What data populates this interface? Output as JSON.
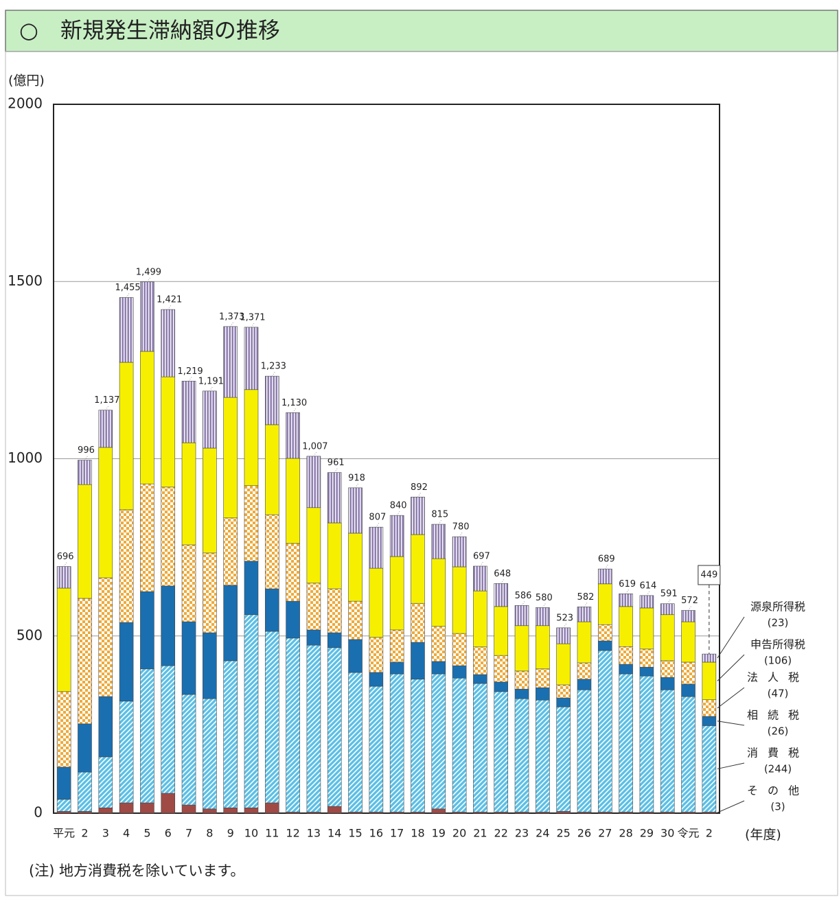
{
  "chart_data": {
    "type": "stacked_bar",
    "title": "○　新規発生滞納額の推移",
    "y_unit": "(億円)",
    "x_unit": "(年度)",
    "note": "(注) 地方消費税を除いています。",
    "categories": [
      "平元",
      "2",
      "3",
      "4",
      "5",
      "6",
      "7",
      "8",
      "9",
      "10",
      "11",
      "12",
      "13",
      "14",
      "15",
      "16",
      "17",
      "18",
      "19",
      "20",
      "21",
      "22",
      "23",
      "24",
      "25",
      "26",
      "27",
      "28",
      "29",
      "30",
      "令元",
      "2"
    ],
    "ylim": [
      0,
      2000
    ],
    "yticks": [
      0,
      500,
      1000,
      1500,
      2000
    ],
    "grid": true,
    "series": [
      {
        "name": "その他",
        "legend_label": "(3)",
        "color": "#a04a46",
        "pattern": "solid",
        "values": [
          5,
          5,
          15,
          29,
          29,
          56,
          23,
          12,
          15,
          15,
          29,
          3,
          3,
          19,
          3,
          3,
          3,
          3,
          12,
          3,
          3,
          3,
          3,
          3,
          5,
          3,
          3,
          3,
          3,
          3,
          3,
          3
        ]
      },
      {
        "name": "消費税",
        "legend_label": "(244)",
        "color": "#5bbfe6",
        "pattern": "diagonal",
        "values": [
          34,
          111,
          144,
          287,
          378,
          360,
          312,
          311,
          415,
          545,
          484,
          491,
          471,
          448,
          394,
          355,
          390,
          375,
          381,
          378,
          363,
          340,
          320,
          316,
          295,
          345,
          456,
          390,
          384,
          345,
          326,
          244
        ]
      },
      {
        "name": "相続税",
        "legend_label": "(26)",
        "color": "#1a6fb0",
        "pattern": "solid",
        "values": [
          91,
          136,
          170,
          222,
          218,
          225,
          205,
          186,
          213,
          151,
          120,
          104,
          43,
          42,
          93,
          39,
          33,
          104,
          35,
          35,
          25,
          27,
          27,
          35,
          25,
          30,
          27,
          27,
          25,
          35,
          35,
          26
        ]
      },
      {
        "name": "法人税",
        "legend_label": "(47)",
        "color": "#eeaa3a",
        "pattern": "checker",
        "values": [
          213,
          354,
          335,
          318,
          304,
          279,
          217,
          225,
          190,
          213,
          209,
          163,
          132,
          124,
          108,
          99,
          91,
          110,
          99,
          91,
          78,
          75,
          51,
          53,
          37,
          46,
          46,
          50,
          51,
          47,
          62,
          47
        ]
      },
      {
        "name": "申告所得税",
        "legend_label": "(106)",
        "color": "#f6f000",
        "pattern": "solid",
        "values": [
          292,
          321,
          368,
          416,
          374,
          311,
          288,
          296,
          340,
          271,
          254,
          240,
          213,
          186,
          192,
          195,
          207,
          194,
          191,
          188,
          158,
          138,
          128,
          122,
          116,
          116,
          115,
          113,
          116,
          130,
          114,
          106
        ]
      },
      {
        "name": "源泉所得税",
        "legend_label": "(23)",
        "color": "#8f7fb0",
        "pattern": "vertical",
        "values": [
          61,
          69,
          105,
          183,
          196,
          190,
          174,
          161,
          200,
          176,
          137,
          129,
          145,
          142,
          128,
          116,
          116,
          106,
          97,
          85,
          70,
          65,
          57,
          51,
          45,
          42,
          42,
          36,
          35,
          31,
          32,
          23
        ]
      }
    ],
    "totals": [
      696,
      996,
      1137,
      1455,
      1499,
      1421,
      1219,
      1191,
      1373,
      1371,
      1233,
      1130,
      1007,
      961,
      918,
      807,
      840,
      892,
      815,
      780,
      697,
      648,
      586,
      580,
      523,
      582,
      689,
      619,
      614,
      591,
      572,
      449
    ],
    "total_labels": [
      "696",
      "996",
      "1,137",
      "1,455",
      "1,499",
      "1,421",
      "1,219",
      "1,191",
      "1,373",
      "1,371",
      "1,233",
      "1,130",
      "1,007",
      "961",
      "918",
      "807",
      "840",
      "892",
      "815",
      "780",
      "697",
      "648",
      "586",
      "580",
      "523",
      "582",
      "689",
      "619",
      "614",
      "591",
      "572",
      "449"
    ]
  }
}
